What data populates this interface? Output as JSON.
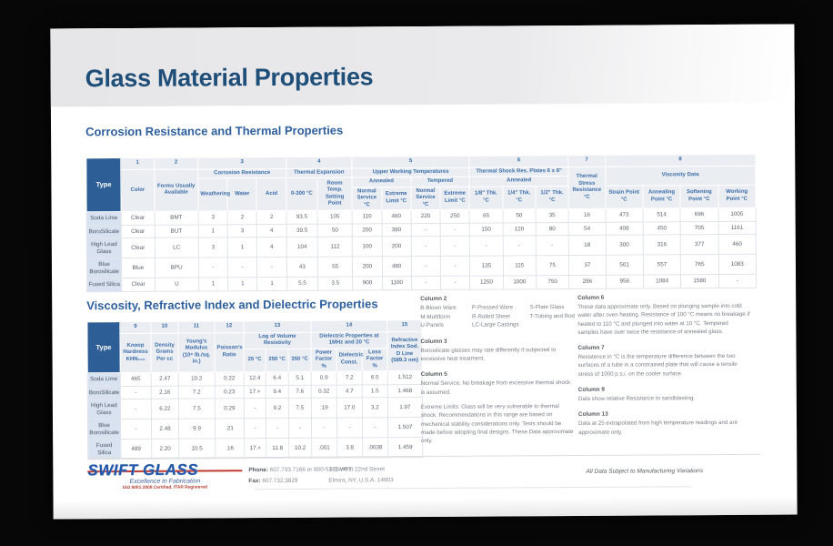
{
  "title": "Glass Material Properties",
  "section1": {
    "heading": "Corrosion Resistance and Thermal Properties"
  },
  "t1": {
    "nums": [
      "1",
      "2",
      "3",
      "4",
      "5",
      "6",
      "7",
      "8"
    ],
    "h": {
      "type": "Type",
      "color": "Color",
      "forms": "Forms Usually Available",
      "corrosion": "Corrosion Resistance",
      "weathering": "Weathering",
      "water": "Water",
      "acid": "Acid",
      "texp": "Thermal Expansion",
      "c0300": "0-300 °C",
      "room": "Room Temp. Setting Point",
      "uwt": "Upper Working Temperatures",
      "annealed": "Annealed",
      "tempered": "Tempered",
      "ns": "Normal Service °C",
      "el": "Extreme Limit °C",
      "shock": "Thermal Shock Res. Plates 6 x 6\"",
      "annealed2": "Annealed",
      "thk18": "1/8\" Thk. °C",
      "thk14": "1/4\" Thk. °C",
      "thk12": "1/2\" Thk. °C",
      "stress": "Thermal Stress Resistance °C",
      "visc": "Viscosity Data",
      "strain": "Strain Point °C",
      "annealpt": "Annealing Point °C",
      "soften": "Softening Point °C",
      "work": "Working Point °C"
    },
    "rows": [
      [
        "Soda Lime",
        "Clear",
        "BMT",
        "3",
        "2",
        "2",
        "93.5",
        "105",
        "110",
        "460",
        "220",
        "250",
        "65",
        "50",
        "35",
        "16",
        "473",
        "514",
        "696",
        "1005"
      ],
      [
        "BoroSilicate",
        "Clear",
        "BUT",
        "1",
        "3",
        "4",
        "39.5",
        "50",
        "200",
        "390",
        "-",
        "-",
        "150",
        "120",
        "80",
        "54",
        "408",
        "450",
        "705",
        "1161"
      ],
      [
        "High Lead Glass",
        "Clear",
        "LC",
        "3",
        "1",
        "4",
        "104",
        "112",
        "100",
        "200",
        "-",
        "-",
        "-",
        "-",
        "-",
        "18",
        "300",
        "316",
        "377",
        "460"
      ],
      [
        "Blue Borosilicate",
        "Blue",
        "BPU",
        "-",
        "-",
        "-",
        "43",
        "55",
        "200",
        "480",
        "-",
        "-",
        "135",
        "115",
        "75",
        "37",
        "501",
        "557",
        "765",
        "1083"
      ],
      [
        "Fused Silica",
        "Clear",
        "U",
        "1",
        "1",
        "1",
        "5.5",
        "3.5",
        "900",
        "1100",
        "-",
        "-",
        "1250",
        "1000",
        "750",
        "286",
        "956",
        "1084",
        "1580",
        "-"
      ]
    ]
  },
  "section2": {
    "heading": "Viscosity, Refractive Index and Dielectric Properties"
  },
  "t2": {
    "nums": [
      "9",
      "10",
      "11",
      "12",
      "13",
      "14",
      "15"
    ],
    "h": {
      "type": "Type",
      "knoop": "Knoop Hardness KHN₁₀₀",
      "density": "Density Grams Per cc",
      "youngs": "Young's Modulus (10⁶ lb./sq. in.)",
      "poisson": "Poisson's Ratio",
      "logvol": "Log of Volume Resistivity",
      "t25": "25 °C",
      "t250": "250 °C",
      "t350": "350 °C",
      "diel": "Dielectric Properties at 1MHz and 20 °C",
      "power": "Power Factor %",
      "dconst": "Dielectric Const.",
      "loss": "Loss Factor %",
      "refr": "Refractive Index Sod. D Line (589.3 nm)"
    },
    "rows": [
      [
        "Soda Lime",
        "465",
        "2.47",
        "10.2",
        "0.22",
        "12.4",
        "6.4",
        "5.1",
        "0.9",
        "7.2",
        "6.5",
        "1.512"
      ],
      [
        "BoroSilicate",
        "-",
        "2.16",
        "7.2",
        "0.23",
        "17.+",
        "9.4",
        "7.6",
        "0.32",
        "4.7",
        "1.5",
        "1.468"
      ],
      [
        "High Lead Glass",
        "-",
        "6.22",
        "7.5",
        "0.29",
        "-",
        "9.2",
        "7.5",
        ".19",
        "17.0",
        "3.2",
        "1.97"
      ],
      [
        "Blue Borosilicate",
        "-",
        "2.48",
        "9.9",
        ".21",
        "-",
        "-",
        "-",
        "-",
        "-",
        "-",
        "1.507"
      ],
      [
        "Fused Silica",
        "489",
        "2.20",
        "10.5",
        ".16",
        "17.+",
        "11.8",
        "10.2",
        ".001",
        "3.8",
        ".0038",
        "1.459"
      ]
    ]
  },
  "notes": {
    "column2": {
      "title": "Column 2",
      "col1": [
        "B-Blown Ware",
        "M-Multiform",
        "U-Panels"
      ],
      "col2": [
        "P-Pressed Ware",
        "R-Rolled Sheet",
        "LC-Large Castings"
      ],
      "col3": [
        "S-Plate Glass",
        "T-Tubing and Rod"
      ]
    },
    "column3": {
      "title": "Column 3",
      "body": "Borosilicate glasses may rate differently if subjected to excessive heat treatment."
    },
    "column5": {
      "title": "Column 5",
      "body": "Normal Service. No breakage from excessive thermal shock is assumed.",
      "body2": "Extreme Limits: Glass will be very vulnerable to thermal shock. Recommendations in this range are based on mechanical stability considerations only. Tests should be made before adopting final designs.  These Data approximate only."
    },
    "column6": {
      "title": "Column 6",
      "body": "These data approximate only. Based on plunging sample into cold water after oven heating. Resistance of 100 °C means no breakage if heated to 110 °C and plunged into water at 10 °C. Tempered samples have over twice the resistance of annealed glass."
    },
    "column7": {
      "title": "Column 7",
      "body": "Resistence in °C is the temperature difference between the two surfaces of a tube in a constrained plate that will cause a tensile stress of 1000 p.s.i. on the cooler surface."
    },
    "column9": {
      "title": "Column 9",
      "body": "Data show relative Resistance to sandblasting."
    },
    "column13": {
      "title": "Column 13",
      "body": "Data at 25 extrapolated from high temperature readings and are approximate only."
    }
  },
  "footer": {
    "brand": "SWIFT GLASS",
    "tagline": "Excellence in Fabrication",
    "cert": "ISO 9001:2008 Certified, ITAR Registered",
    "phone_label": "Phone:",
    "phone_value": "607.733.7166 or 800-53-SWIFT",
    "fax_label": "Fax:",
    "fax_value": "607.732.3829",
    "address_line1": "131 West 22nd Street",
    "address_line2": "Elmira, NY, U.S.A. 14903",
    "disclaimer": "All Data Subject to Manufacturing Variations"
  },
  "colors": {
    "title_blue": "#1f4e79",
    "header_text_blue": "#3a6ca8",
    "type_cell_blue": "#2d5e96",
    "row_header_bg": "#d9e2f0",
    "logo_blue": "#2156a8",
    "logo_red": "#c13b32"
  }
}
